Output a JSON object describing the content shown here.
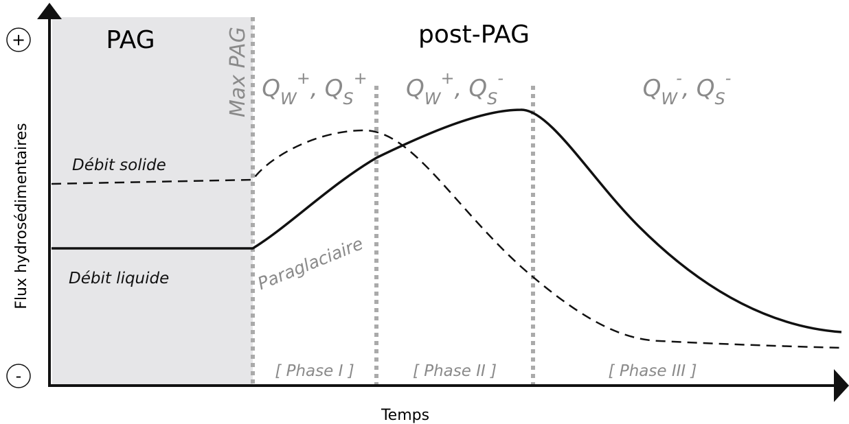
{
  "title_left": "PAG",
  "title_right": "post-PAG",
  "marker": "Max PAG",
  "y_axis": {
    "label": "Flux hydrosédimentaires",
    "top": "+",
    "bottom": "-"
  },
  "x_axis": {
    "label": "Temps"
  },
  "curves": {
    "solid": "Débit solide",
    "liquid": "Débit liquide",
    "para": "Paraglaciaire"
  },
  "phases": [
    {
      "label": "[ Phase I ]",
      "flux": [
        {
          "symbol": "Q",
          "sub": "W",
          "sup": "+"
        },
        {
          "sep": ",",
          "symbol": "Q",
          "sub": "S",
          "sup": "+"
        }
      ]
    },
    {
      "label": "[ Phase II ]",
      "flux": [
        {
          "symbol": "Q",
          "sub": "W",
          "sup": "+"
        },
        {
          "sep": ",",
          "symbol": "Q",
          "sub": "S",
          "sup": "-"
        }
      ]
    },
    {
      "label": "[ Phase III ]",
      "flux": [
        {
          "symbol": "Q",
          "sub": "W",
          "sup": "-"
        },
        {
          "sep": ",",
          "symbol": "Q",
          "sub": "S",
          "sup": "-"
        }
      ]
    }
  ]
}
